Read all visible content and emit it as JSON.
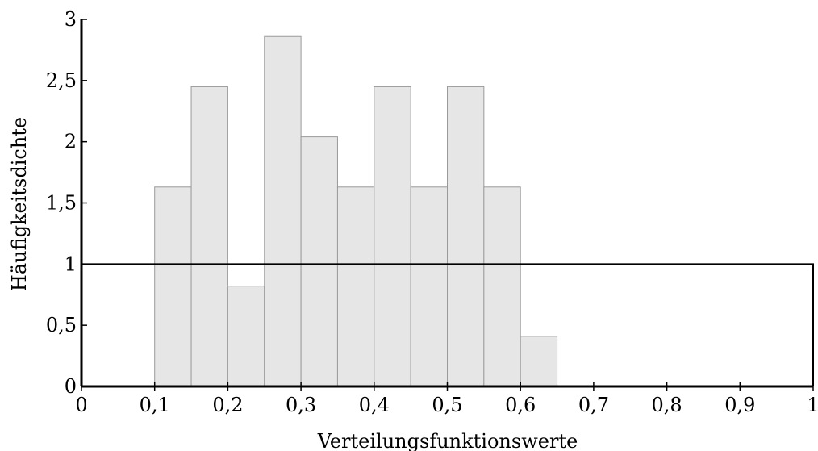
{
  "chart_data": {
    "type": "bar",
    "xlabel": "Verteilungsfunktionswerte",
    "ylabel": "Häufigkeitsdichte",
    "xlim": [
      0,
      1
    ],
    "ylim": [
      0,
      3
    ],
    "bin_edges": [
      0.1,
      0.15,
      0.2,
      0.25,
      0.3,
      0.35,
      0.4,
      0.45,
      0.5,
      0.55,
      0.6,
      0.65
    ],
    "values": [
      1.63,
      2.45,
      0.82,
      2.86,
      2.04,
      1.63,
      2.45,
      1.63,
      2.45,
      1.63,
      0.41
    ],
    "reference_density": 1,
    "x_ticks": [
      {
        "value": 0,
        "label": "0"
      },
      {
        "value": 0.1,
        "label": "0,1"
      },
      {
        "value": 0.2,
        "label": "0,2"
      },
      {
        "value": 0.3,
        "label": "0,3"
      },
      {
        "value": 0.4,
        "label": "0,4"
      },
      {
        "value": 0.5,
        "label": "0,5"
      },
      {
        "value": 0.6,
        "label": "0,6"
      },
      {
        "value": 0.7,
        "label": "0,7"
      },
      {
        "value": 0.8,
        "label": "0,8"
      },
      {
        "value": 0.9,
        "label": "0,9"
      },
      {
        "value": 1,
        "label": "1"
      }
    ],
    "y_ticks": [
      {
        "value": 0,
        "label": "0"
      },
      {
        "value": 0.5,
        "label": "0,5"
      },
      {
        "value": 1,
        "label": "1"
      },
      {
        "value": 1.5,
        "label": "1,5"
      },
      {
        "value": 2,
        "label": "2"
      },
      {
        "value": 2.5,
        "label": "2,5"
      },
      {
        "value": 3,
        "label": "3"
      }
    ],
    "grid": false,
    "colors": {
      "bar_fill": "#e6e6e6",
      "bar_stroke": "#9a9a9a",
      "axis": "#000000"
    }
  }
}
